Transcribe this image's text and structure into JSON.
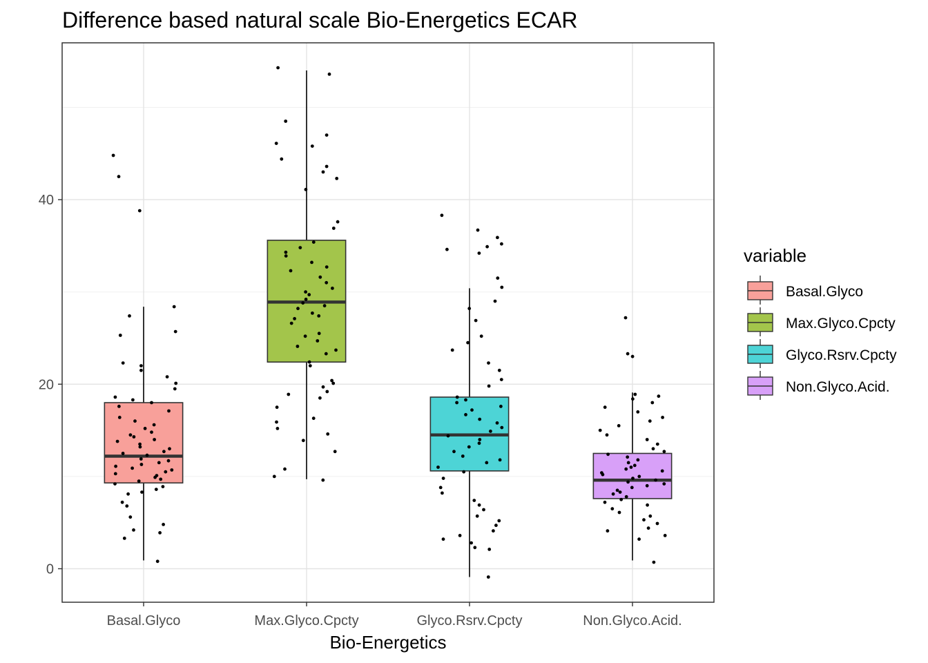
{
  "chart_data": {
    "type": "box",
    "title": "Difference based natural scale Bio-Energetics ECAR",
    "xlabel": "Bio-Energetics",
    "ylabel": "",
    "ylim": [
      -7.5,
      57.5
    ],
    "yticks": [
      0,
      20,
      40
    ],
    "grid": true,
    "legend": {
      "title": "variable",
      "position": "right",
      "entries": [
        "Basal.Glyco",
        "Max.Glyco.Cpcty",
        "Glyco.Rsrv.Cpcty",
        "Non.Glyco.Acid."
      ]
    },
    "categories": [
      "Basal.Glyco",
      "Max.Glyco.Cpcty",
      "Glyco.Rsrv.Cpcty",
      "Non.Glyco.Acid."
    ],
    "series": [
      {
        "name": "Basal.Glyco",
        "color": "#f8a09a",
        "box": {
          "whisker_low": 0.9,
          "q1": 9.3,
          "median": 12.2,
          "q3": 18.0,
          "whisker_high": 28.4
        },
        "points": [
          0.8,
          3.3,
          3.9,
          4.2,
          4.8,
          5.6,
          6.8,
          7.2,
          8.1,
          8.3,
          8.6,
          8.9,
          9.2,
          9.5,
          9.7,
          9.9,
          10.1,
          10.3,
          10.5,
          10.7,
          10.9,
          11.1,
          11.3,
          11.5,
          11.7,
          11.9,
          12.3,
          12.5,
          12.7,
          13.0,
          13.2,
          13.5,
          13.8,
          14.0,
          14.3,
          14.5,
          14.8,
          15.2,
          15.6,
          16.0,
          16.4,
          17.1,
          17.6,
          18.0,
          18.3,
          18.6,
          19.5,
          20.1,
          20.8,
          21.5,
          22.0,
          22.3,
          25.3,
          25.7,
          27.4,
          28.4,
          38.8,
          42.5,
          44.8
        ]
      },
      {
        "name": "Max.Glyco.Cpcty",
        "color": "#a3c54b",
        "box": {
          "whisker_low": 9.7,
          "q1": 22.4,
          "median": 28.9,
          "q3": 35.6,
          "whisker_high": 54.0
        },
        "points": [
          9.6,
          10.0,
          10.8,
          12.7,
          13.9,
          14.6,
          15.2,
          15.9,
          16.3,
          17.5,
          18.5,
          18.9,
          19.2,
          19.7,
          20.1,
          20.4,
          22.0,
          22.4,
          23.3,
          23.7,
          24.1,
          24.7,
          25.2,
          25.5,
          26.6,
          27.1,
          27.4,
          27.7,
          28.2,
          28.5,
          28.8,
          29.2,
          29.7,
          30.0,
          30.4,
          31.0,
          31.6,
          32.3,
          32.7,
          33.2,
          33.9,
          34.3,
          34.8,
          35.4,
          36.9,
          37.6,
          41.1,
          42.3,
          43.0,
          43.6,
          44.4,
          45.8,
          46.1,
          47.0,
          48.5,
          53.6,
          54.3
        ]
      },
      {
        "name": "Glyco.Rsrv.Cpcty",
        "color": "#4dd4d6",
        "box": {
          "whisker_low": -0.9,
          "q1": 10.6,
          "median": 14.5,
          "q3": 18.6,
          "whisker_high": 30.4
        },
        "points": [
          -0.9,
          2.1,
          2.3,
          2.8,
          3.2,
          3.6,
          4.1,
          4.7,
          5.2,
          5.7,
          6.4,
          6.9,
          7.4,
          8.2,
          8.8,
          9.8,
          10.5,
          11.0,
          11.5,
          11.8,
          12.2,
          12.7,
          13.2,
          13.6,
          14.0,
          14.4,
          14.9,
          15.3,
          15.8,
          16.2,
          16.7,
          17.2,
          17.6,
          18.0,
          18.3,
          18.6,
          19.8,
          20.5,
          21.5,
          22.3,
          23.7,
          24.5,
          25.2,
          26.9,
          28.2,
          29.0,
          30.5,
          31.5,
          34.2,
          34.6,
          34.9,
          35.2,
          35.9,
          36.7,
          38.3
        ]
      },
      {
        "name": "Non.Glyco.Acid.",
        "color": "#d8a0f8",
        "box": {
          "whisker_low": 0.9,
          "q1": 7.6,
          "median": 9.6,
          "q3": 12.5,
          "whisker_high": 19.1
        },
        "points": [
          0.7,
          3.2,
          3.6,
          4.1,
          4.4,
          4.9,
          5.3,
          5.7,
          6.1,
          6.5,
          6.9,
          7.2,
          7.5,
          7.8,
          8.1,
          8.3,
          8.5,
          8.8,
          9.0,
          9.2,
          9.4,
          9.6,
          9.8,
          10.0,
          10.2,
          10.4,
          10.6,
          10.8,
          11.0,
          11.2,
          11.5,
          11.8,
          12.1,
          12.4,
          12.7,
          13.0,
          13.5,
          14.0,
          14.5,
          15.0,
          15.5,
          16.0,
          16.4,
          17.0,
          17.5,
          18.0,
          18.4,
          18.7,
          18.9,
          23.0,
          23.3,
          27.2
        ]
      }
    ]
  }
}
